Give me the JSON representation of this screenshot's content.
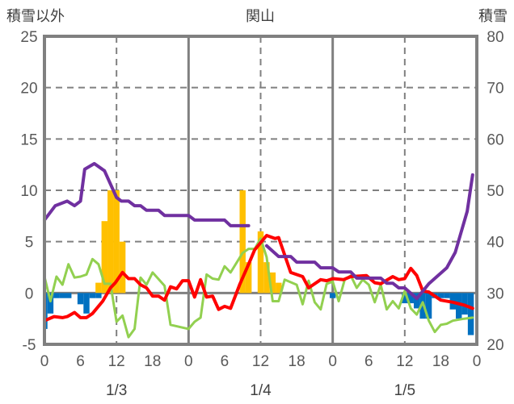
{
  "chart_data": {
    "type": "bar+line",
    "title": "関山",
    "ylabel_left": "積雪以外",
    "ylabel_right": "積雪",
    "ylim_left": [
      -5,
      25
    ],
    "ylim_right": [
      20,
      80
    ],
    "yticks_left": [
      "25",
      "20",
      "15",
      "10",
      "5",
      "0",
      "-5"
    ],
    "yticks_right": [
      "80",
      "70",
      "60",
      "50",
      "40",
      "30",
      "20"
    ],
    "xlim_hours": [
      0,
      72
    ],
    "xtick_labels": [
      "0",
      "6",
      "12",
      "18",
      "0",
      "6",
      "12",
      "18",
      "0",
      "6",
      "12",
      "18",
      "0"
    ],
    "date_labels": [
      "1/3",
      "1/4",
      "1/5"
    ],
    "grid": "dashed horizontal every 5; solid vertical at day boundaries, dashed at noon",
    "colors": {
      "snowfall": "#FFC000",
      "snow_decrease": "#0070C0",
      "temperature": "#FF0000",
      "other": "#92D050",
      "snow_depth": "#7030A0",
      "frame": "#808080"
    },
    "series": [
      {
        "name": "snowfall_positive",
        "type": "bar",
        "axis": "left",
        "color": "#FFC000",
        "points": [
          [
            9,
            1
          ],
          [
            10,
            7
          ],
          [
            11,
            10
          ],
          [
            12,
            10
          ],
          [
            13,
            5
          ],
          [
            33,
            10
          ],
          [
            34,
            3
          ],
          [
            36,
            6
          ],
          [
            37,
            3
          ],
          [
            38,
            2
          ],
          [
            39,
            1
          ]
        ]
      },
      {
        "name": "snowfall_negative",
        "type": "bar",
        "axis": "left",
        "color": "#0070C0",
        "points": [
          [
            0,
            -3.5
          ],
          [
            1,
            -2
          ],
          [
            2,
            -0.5
          ],
          [
            3,
            -0.5
          ],
          [
            4,
            -0.5
          ],
          [
            6,
            -1.1
          ],
          [
            7,
            -2
          ],
          [
            8,
            -0.5
          ],
          [
            9,
            -0.5
          ],
          [
            48,
            -0.5
          ],
          [
            60,
            -1
          ],
          [
            61,
            -1
          ],
          [
            62,
            -1.5
          ],
          [
            63,
            -2.5
          ],
          [
            64,
            -2.5
          ],
          [
            65,
            -0.5
          ],
          [
            66,
            -0.5
          ],
          [
            67,
            -0.5
          ],
          [
            68,
            -1.6
          ],
          [
            69,
            -2.5
          ],
          [
            70,
            -2.1
          ],
          [
            71,
            -4.1
          ]
        ]
      },
      {
        "name": "temperature",
        "type": "line",
        "axis": "left",
        "color": "#FF0000",
        "points": [
          [
            0,
            -2.7
          ],
          [
            1.6,
            -2.3
          ],
          [
            3,
            -2.4
          ],
          [
            3.8,
            -2.3
          ],
          [
            5,
            -1.9
          ],
          [
            6,
            -2.4
          ],
          [
            7,
            -2.4
          ],
          [
            8,
            -2.0
          ],
          [
            9.7,
            -0.8
          ],
          [
            11,
            0.5
          ],
          [
            11.8,
            1.0
          ],
          [
            13,
            2.0
          ],
          [
            14,
            1.4
          ],
          [
            15,
            1.4
          ],
          [
            16,
            0.8
          ],
          [
            17,
            0.5
          ],
          [
            18,
            -0.3
          ],
          [
            19,
            -0.3
          ],
          [
            20,
            -0.7
          ],
          [
            21,
            0.6
          ],
          [
            22,
            0.4
          ],
          [
            23,
            1.2
          ],
          [
            24,
            1.2
          ],
          [
            25,
            -0.4
          ],
          [
            26,
            1.3
          ],
          [
            27,
            -0.4
          ],
          [
            28,
            -0.3
          ],
          [
            29,
            -1.6
          ],
          [
            30,
            -1.3
          ],
          [
            31,
            -1.5
          ],
          [
            32.5,
            0.8
          ],
          [
            34,
            2.8
          ],
          [
            35,
            4.2
          ],
          [
            37,
            5.6
          ],
          [
            38.4,
            5.3
          ],
          [
            39,
            5.4
          ],
          [
            41,
            2.0
          ],
          [
            43,
            1.6
          ],
          [
            44,
            0.5
          ],
          [
            46,
            1.3
          ],
          [
            47,
            1.2
          ],
          [
            48,
            1.4
          ],
          [
            49.8,
            1.3
          ],
          [
            51,
            1.6
          ],
          [
            53.6,
            1.7
          ],
          [
            55,
            1.0
          ],
          [
            56,
            0.9
          ],
          [
            58,
            1.6
          ],
          [
            59,
            1.3
          ],
          [
            60,
            1.4
          ],
          [
            61,
            2.4
          ],
          [
            62,
            1.7
          ],
          [
            63,
            0.2
          ],
          [
            64,
            0.1
          ],
          [
            66,
            -0.7
          ],
          [
            68,
            -0.9
          ],
          [
            70,
            -1.2
          ],
          [
            71.3,
            -1.5
          ]
        ]
      },
      {
        "name": "other",
        "type": "line",
        "axis": "left",
        "color": "#92D050",
        "points": [
          [
            0,
            1.6
          ],
          [
            1,
            -0.8
          ],
          [
            2,
            1.6
          ],
          [
            3,
            0.8
          ],
          [
            4,
            2.8
          ],
          [
            5,
            1.5
          ],
          [
            6,
            1.6
          ],
          [
            7,
            1.8
          ],
          [
            8,
            3.3
          ],
          [
            9,
            2.8
          ],
          [
            10,
            0.9
          ],
          [
            11,
            0.9
          ],
          [
            12,
            -2.8
          ],
          [
            13,
            -2.2
          ],
          [
            14,
            -4.3
          ],
          [
            15,
            -3.5
          ],
          [
            16,
            1.5
          ],
          [
            17,
            0.8
          ],
          [
            18,
            2.0
          ],
          [
            20,
            0.7
          ],
          [
            21,
            -3.1
          ],
          [
            24,
            -3.5
          ],
          [
            25,
            -2.8
          ],
          [
            26,
            -2.4
          ],
          [
            27,
            1.8
          ],
          [
            28,
            1.4
          ],
          [
            29,
            1.3
          ],
          [
            30,
            2.6
          ],
          [
            31,
            2.0
          ],
          [
            33,
            3.9
          ],
          [
            34,
            4.3
          ],
          [
            35,
            4.3
          ],
          [
            36,
            5.3
          ],
          [
            37,
            3.5
          ],
          [
            38,
            -0.8
          ],
          [
            39,
            -0.8
          ],
          [
            40,
            1.3
          ],
          [
            42,
            0.8
          ],
          [
            43,
            -1.1
          ],
          [
            44,
            1.2
          ],
          [
            45,
            -0.9
          ],
          [
            46,
            -1.6
          ],
          [
            47,
            0.9
          ],
          [
            48,
            1.1
          ],
          [
            49,
            -0.8
          ],
          [
            50,
            1.3
          ],
          [
            51,
            1.7
          ],
          [
            52,
            0.5
          ],
          [
            53,
            1.3
          ],
          [
            54,
            0.8
          ],
          [
            55,
            -0.9
          ],
          [
            56,
            0.8
          ],
          [
            57,
            -1.6
          ],
          [
            58,
            -0.8
          ],
          [
            59,
            -1.5
          ],
          [
            60,
            0.2
          ],
          [
            61,
            -1.5
          ],
          [
            62,
            -2.1
          ],
          [
            63,
            -0.9
          ],
          [
            64,
            -2.7
          ],
          [
            65,
            -3.8
          ],
          [
            66,
            -3.1
          ],
          [
            67,
            -3.0
          ],
          [
            68,
            -2.7
          ],
          [
            69.9,
            -2.5
          ],
          [
            71.3,
            -2.4
          ]
        ]
      },
      {
        "name": "snow_depth_a",
        "type": "line",
        "axis": "right",
        "color": "#7030A0",
        "points": [
          [
            0,
            44.2
          ],
          [
            1.8,
            47.0
          ],
          [
            3.8,
            47.9
          ],
          [
            5,
            47.0
          ],
          [
            6,
            47.9
          ],
          [
            6.7,
            54.1
          ],
          [
            8.3,
            55.2
          ],
          [
            10,
            53.8
          ],
          [
            12,
            48.6
          ],
          [
            12.8,
            47.9
          ],
          [
            14,
            47.9
          ],
          [
            15,
            47.0
          ],
          [
            16,
            47.0
          ],
          [
            17,
            46.1
          ],
          [
            19,
            46.1
          ],
          [
            20,
            45.1
          ],
          [
            24,
            45.1
          ],
          [
            25,
            44.2
          ],
          [
            30,
            44.2
          ],
          [
            31,
            43.1
          ],
          [
            34,
            43.1
          ]
        ]
      },
      {
        "name": "snow_depth_b",
        "type": "line",
        "axis": "right",
        "color": "#7030A0",
        "points": [
          [
            37,
            39.2
          ],
          [
            39,
            37.1
          ],
          [
            41,
            37.1
          ],
          [
            42,
            36.0
          ],
          [
            45,
            36.0
          ],
          [
            46,
            34.9
          ],
          [
            48,
            34.9
          ],
          [
            49,
            34.1
          ],
          [
            51,
            34.1
          ],
          [
            52,
            32.9
          ],
          [
            56,
            32.9
          ],
          [
            57,
            31.9
          ],
          [
            58,
            31.9
          ],
          [
            59,
            31.0
          ],
          [
            60,
            31.0
          ],
          [
            62,
            28.9
          ],
          [
            64,
            31.8
          ],
          [
            67,
            34.9
          ],
          [
            68.4,
            37.9
          ],
          [
            70.4,
            45.9
          ],
          [
            71.3,
            53.0
          ]
        ]
      }
    ]
  }
}
